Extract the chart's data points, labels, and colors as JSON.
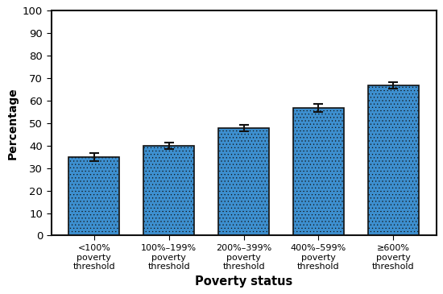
{
  "categories": [
    "<100%\npoverty\nthreshold",
    "100%–199%\npoverty\nthreshold",
    "200%–399%\npoverty\nthreshold",
    "400%–599%\npoverty\nthreshold",
    "≥600%\npoverty\nthreshold"
  ],
  "values": [
    34.8,
    40.0,
    47.8,
    56.7,
    66.8
  ],
  "errors": [
    1.8,
    1.5,
    1.3,
    1.7,
    1.5
  ],
  "bar_color": "#3d8fcf",
  "bar_edge_color": "#111111",
  "hatch_color": "#1a5fa0",
  "error_color": "#111111",
  "ylabel": "Percentage",
  "xlabel": "Poverty status",
  "ylim": [
    0,
    100
  ],
  "yticks": [
    0,
    10,
    20,
    30,
    40,
    50,
    60,
    70,
    80,
    90,
    100
  ],
  "bar_width": 0.68,
  "ylabel_fontsize": 10,
  "xlabel_fontsize": 10.5,
  "tick_fontsize": 9.5,
  "xtick_fontsize": 8.0,
  "spine_linewidth": 1.5
}
